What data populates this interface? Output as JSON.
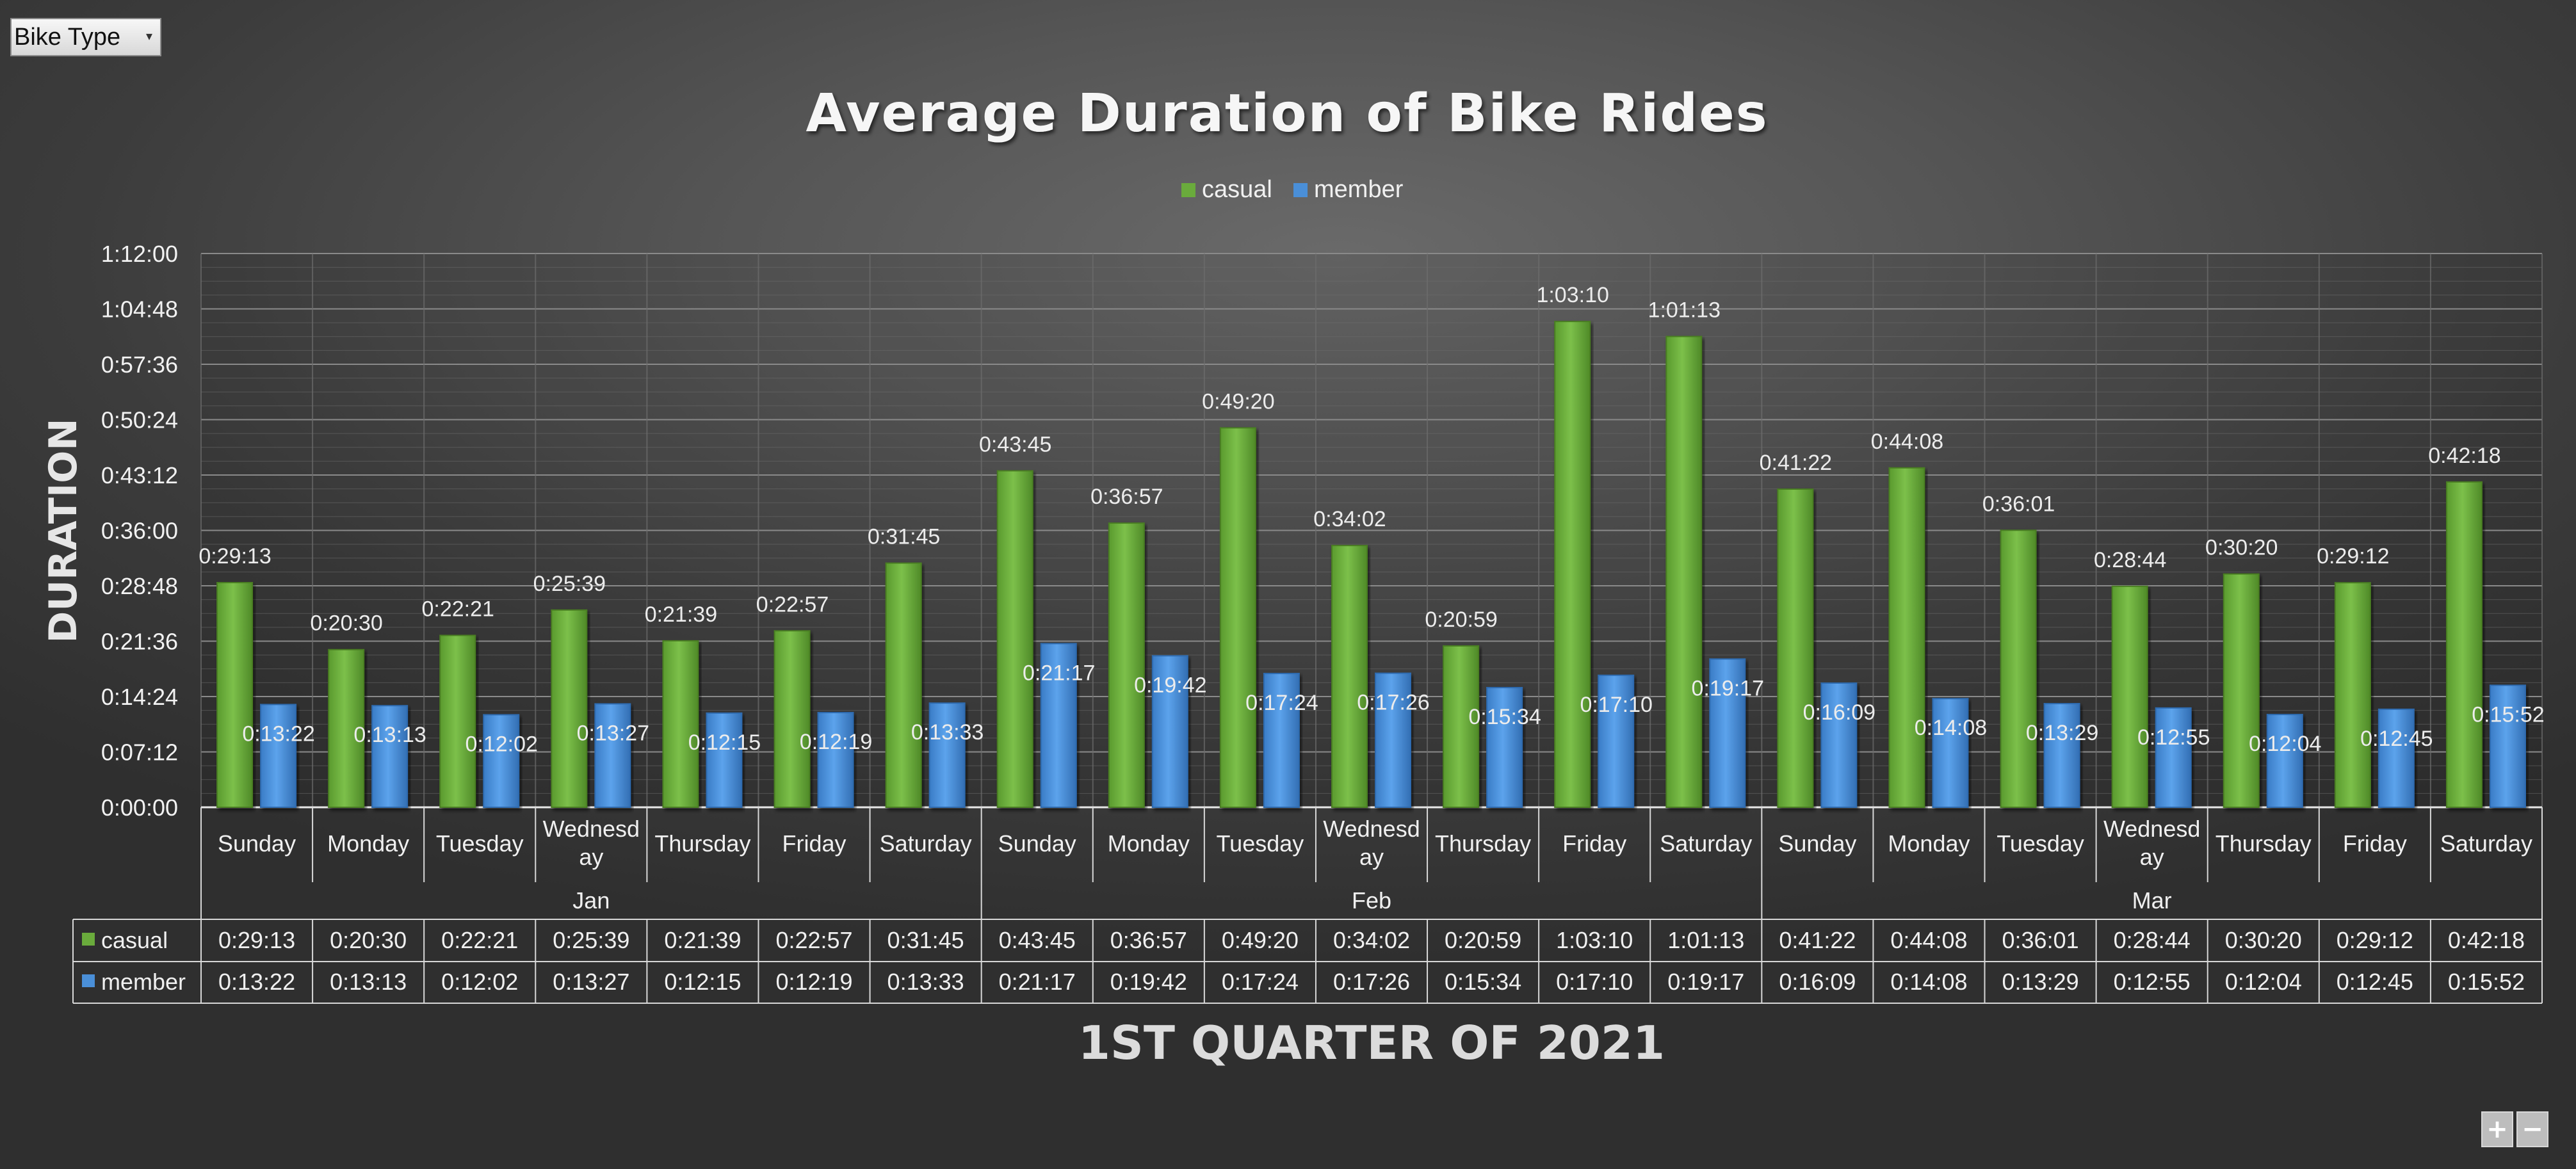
{
  "filter_button": {
    "label": "Bike Type",
    "dropdown_icon": "dropdown-arrow-icon"
  },
  "zoom_controls": {
    "zoom_in_label": "+",
    "zoom_out_label": "−",
    "zoom_in_icon": "plus-icon",
    "zoom_out_icon": "minus-icon"
  },
  "chart_data": {
    "type": "bar",
    "title": "Average Duration of Bike Rides",
    "xlabel": "1ST QUARTER OF 2021",
    "ylabel": "DURATION",
    "y_ticks": [
      "1:12:00",
      "1:04:48",
      "0:57:36",
      "0:50:24",
      "0:43:12",
      "0:36:00",
      "0:28:48",
      "0:21:36",
      "0:14:24",
      "0:07:12",
      "0:00:00"
    ],
    "ylim": [
      "0:00:00",
      "1:12:00"
    ],
    "months": [
      {
        "name": "Jan",
        "days": [
          "Sunday",
          "Monday",
          "Tuesday",
          "Wednesday",
          "Thursday",
          "Friday",
          "Saturday"
        ]
      },
      {
        "name": "Feb",
        "days": [
          "Sunday",
          "Monday",
          "Tuesday",
          "Wednesday",
          "Thursday",
          "Friday",
          "Saturday"
        ]
      },
      {
        "name": "Mar",
        "days": [
          "Sunday",
          "Monday",
          "Tuesday",
          "Wednesday",
          "Thursday",
          "Friday",
          "Saturday"
        ]
      }
    ],
    "legend_position": "top",
    "grid": true,
    "series": [
      {
        "name": "casual",
        "color": "#6aab3c",
        "values": [
          "0:29:13",
          "0:20:30",
          "0:22:21",
          "0:25:39",
          "0:21:39",
          "0:22:57",
          "0:31:45",
          "0:43:45",
          "0:36:57",
          "0:49:20",
          "0:34:02",
          "0:20:59",
          "1:03:10",
          "1:01:13",
          "0:41:22",
          "0:44:08",
          "0:36:01",
          "0:28:44",
          "0:30:20",
          "0:29:12",
          "0:42:18"
        ]
      },
      {
        "name": "member",
        "color": "#4a8fd8",
        "values": [
          "0:13:22",
          "0:13:13",
          "0:12:02",
          "0:13:27",
          "0:12:15",
          "0:12:19",
          "0:13:33",
          "0:21:17",
          "0:19:42",
          "0:17:24",
          "0:17:26",
          "0:15:34",
          "0:17:10",
          "0:19:17",
          "0:16:09",
          "0:14:08",
          "0:13:29",
          "0:12:55",
          "0:12:04",
          "0:12:45",
          "0:15:52"
        ]
      }
    ],
    "show_data_table": true
  }
}
